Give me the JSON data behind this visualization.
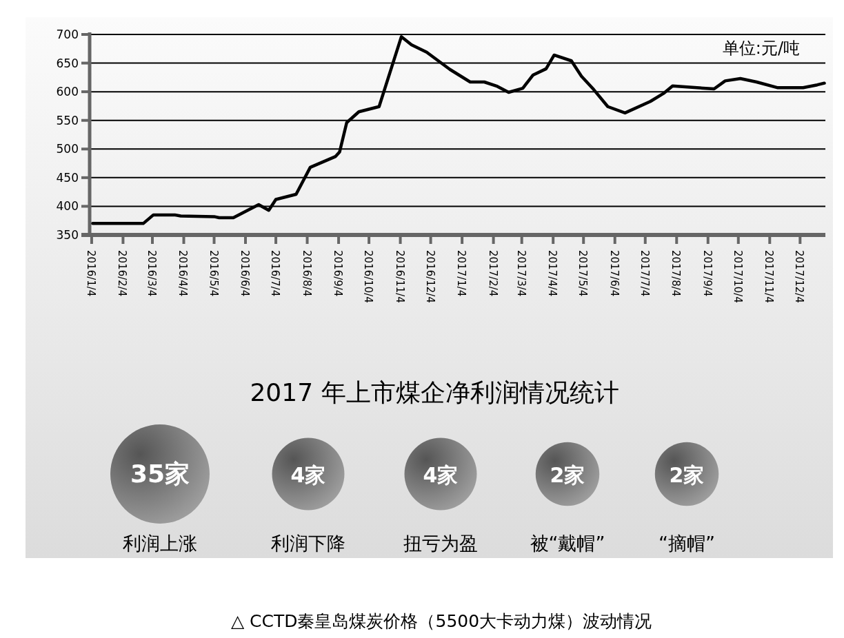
{
  "chart_data": [
    {
      "type": "line",
      "x": [
        "2016-01-05",
        "2016-02-24",
        "2016-03-05",
        "2016-03-26",
        "2016-04-01",
        "2016-05-04",
        "2016-05-09",
        "2016-05-23",
        "2016-06-17",
        "2016-06-27",
        "2016-07-04",
        "2016-07-24",
        "2016-08-07",
        "2016-09-01",
        "2016-09-05",
        "2016-09-12",
        "2016-09-24",
        "2016-10-14",
        "2016-11-05",
        "2016-11-15",
        "2016-11-30",
        "2016-12-23",
        "2017-01-12",
        "2017-01-26",
        "2017-02-07",
        "2017-02-19",
        "2017-03-05",
        "2017-03-15",
        "2017-03-28",
        "2017-04-05",
        "2017-04-22",
        "2017-05-02",
        "2017-05-14",
        "2017-05-28",
        "2017-06-14",
        "2017-07-09",
        "2017-07-22",
        "2017-07-31",
        "2017-09-10",
        "2017-09-21",
        "2017-10-06",
        "2017-10-22",
        "2017-11-12",
        "2017-12-07",
        "2017-12-21",
        "2017-12-28"
      ],
      "series": [
        {
          "color": "#000000",
          "values": [
            370,
            370,
            385,
            385,
            383,
            382,
            380,
            380,
            403,
            393,
            412,
            421,
            468,
            487,
            495,
            546,
            565,
            574,
            696,
            682,
            669,
            639,
            617,
            617,
            610,
            599,
            606,
            629,
            640,
            664,
            654,
            627,
            604,
            574,
            563,
            583,
            597,
            610,
            605,
            619,
            623,
            617,
            607,
            607,
            612,
            615
          ]
        }
      ],
      "xlim": [
        "2016-01-02",
        "2017-12-29"
      ],
      "xticks": [
        {
          "value": "2016-01-04",
          "label": "2016/1/4"
        },
        {
          "value": "2016-02-04",
          "label": "2016/2/4"
        },
        {
          "value": "2016-03-04",
          "label": "2016/3/4"
        },
        {
          "value": "2016-04-04",
          "label": "2016/4/4"
        },
        {
          "value": "2016-05-04",
          "label": "2016/5/4"
        },
        {
          "value": "2016-06-04",
          "label": "2016/6/4"
        },
        {
          "value": "2016-07-04",
          "label": "2016/7/4"
        },
        {
          "value": "2016-08-04",
          "label": "2016/8/4"
        },
        {
          "value": "2016-09-04",
          "label": "2016/9/4"
        },
        {
          "value": "2016-10-04",
          "label": "2016/10/4"
        },
        {
          "value": "2016-11-04",
          "label": "2016/11/4"
        },
        {
          "value": "2016-12-04",
          "label": "2016/12/4"
        },
        {
          "value": "2017-01-04",
          "label": "2017/1/4"
        },
        {
          "value": "2017-02-04",
          "label": "2017/2/4"
        },
        {
          "value": "2017-03-04",
          "label": "2017/3/4"
        },
        {
          "value": "2017-04-04",
          "label": "2017/4/4"
        },
        {
          "value": "2017-05-04",
          "label": "2017/5/4"
        },
        {
          "value": "2017-06-04",
          "label": "2017/6/4"
        },
        {
          "value": "2017-07-04",
          "label": "2017/7/4"
        },
        {
          "value": "2017-08-04",
          "label": "2017/8/4"
        },
        {
          "value": "2017-09-04",
          "label": "2017/9/4"
        },
        {
          "value": "2017-10-04",
          "label": "2017/10/4"
        },
        {
          "value": "2017-11-04",
          "label": "2017/11/4"
        },
        {
          "value": "2017-12-04",
          "label": "2017/12/4"
        }
      ],
      "ylim": [
        350,
        700
      ],
      "yticks": [
        350,
        400,
        450,
        500,
        550,
        600,
        650,
        700
      ],
      "grid": "y",
      "marker": "none",
      "line_style": "solid",
      "annotations": [
        "单位:元/吨",
        "△ CCTD秦皇岛煤炭价格（5500大卡动力煤）波动情况"
      ]
    },
    {
      "type": "other",
      "title": "2017 年上市煤企净利润情况统计",
      "categories": [
        "利润上涨",
        "利润下降",
        "扭亏为盈",
        "被“戴帽”",
        "“摘帽”"
      ],
      "values": [
        35,
        4,
        4,
        2,
        2
      ],
      "value_labels": [
        "35家",
        "4家",
        "4家",
        "2家",
        "2家"
      ],
      "color": "#555555"
    }
  ]
}
